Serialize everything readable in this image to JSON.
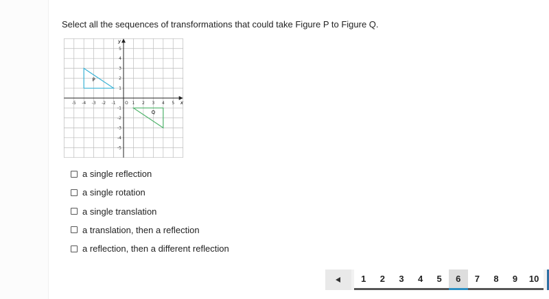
{
  "question": "Select all the sequences of transformations that could take Figure P to Figure Q.",
  "graph": {
    "x_axis_label": "x",
    "y_axis_label": "y",
    "origin_label": "O",
    "x_tick_labels": [
      -5,
      -4,
      -3,
      -2,
      -1,
      1,
      2,
      3,
      4,
      5
    ],
    "y_tick_labels": [
      5,
      4,
      3,
      2,
      1,
      -1,
      -2,
      -3,
      -4,
      -5
    ],
    "figure_labels": [
      "P",
      "Q"
    ]
  },
  "options": [
    "a single reflection",
    "a single rotation",
    "a single translation",
    "a translation, then a reflection",
    "a reflection, then a different reflection"
  ],
  "pagination": {
    "pages": [
      1,
      2,
      3,
      4,
      5,
      6,
      7,
      8,
      9,
      10
    ],
    "current": 6
  }
}
